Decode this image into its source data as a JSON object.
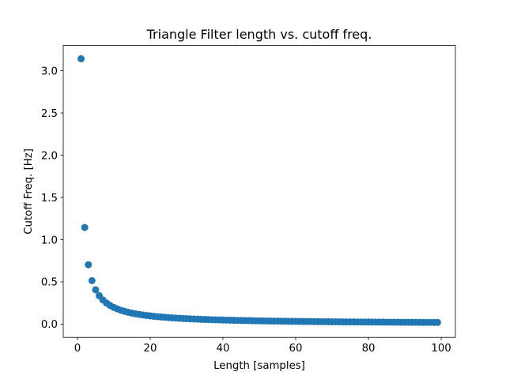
{
  "chart_data": {
    "type": "scatter",
    "title": "Triangle Filter length vs. cutoff freq.",
    "xlabel": "Length [samples]",
    "ylabel": "Cutoff Freq. [Hz]",
    "xlim": [
      -3.9,
      103.9
    ],
    "ylim": [
      -0.157,
      3.299
    ],
    "xticks": [
      0,
      20,
      40,
      60,
      80,
      100
    ],
    "yticks": [
      0.0,
      0.5,
      1.0,
      1.5,
      2.0,
      2.5,
      3.0
    ],
    "xtick_labels": [
      "0",
      "20",
      "40",
      "60",
      "80",
      "100"
    ],
    "ytick_labels": [
      "0.0",
      "0.5",
      "1.0",
      "1.5",
      "2.0",
      "2.5",
      "3.0"
    ],
    "grid": false,
    "marker_color": "#1f77b4",
    "series": [
      {
        "name": "cutoff",
        "x": [
          1,
          2,
          3,
          4,
          5,
          6,
          7,
          8,
          9,
          10,
          11,
          12,
          13,
          14,
          15,
          16,
          17,
          18,
          19,
          20,
          21,
          22,
          23,
          24,
          25,
          26,
          27,
          28,
          29,
          30,
          31,
          32,
          33,
          34,
          35,
          36,
          37,
          38,
          39,
          40,
          41,
          42,
          43,
          44,
          45,
          46,
          47,
          48,
          49,
          50,
          51,
          52,
          53,
          54,
          55,
          56,
          57,
          58,
          59,
          60,
          61,
          62,
          63,
          64,
          65,
          66,
          67,
          68,
          69,
          70,
          71,
          72,
          73,
          74,
          75,
          76,
          77,
          78,
          79,
          80,
          81,
          82,
          83,
          84,
          85,
          86,
          87,
          88,
          89,
          90,
          91,
          92,
          93,
          94,
          95,
          96,
          97,
          98,
          99
        ],
        "y": [
          3.1416,
          1.1437,
          0.703,
          0.5147,
          0.4064,
          0.3356,
          0.2858,
          0.2487,
          0.2201,
          0.1973,
          0.1788,
          0.1634,
          0.1505,
          0.1395,
          0.13,
          0.1217,
          0.1144,
          0.108,
          0.1022,
          0.097,
          0.0924,
          0.0881,
          0.0843,
          0.0807,
          0.0775,
          0.0745,
          0.0717,
          0.0691,
          0.0667,
          0.0645,
          0.0624,
          0.0604,
          0.0586,
          0.0569,
          0.0552,
          0.0537,
          0.0522,
          0.0508,
          0.0495,
          0.0483,
          0.0471,
          0.046,
          0.0449,
          0.0439,
          0.0429,
          0.042,
          0.0411,
          0.0402,
          0.0394,
          0.0386,
          0.0379,
          0.0371,
          0.0364,
          0.0358,
          0.0351,
          0.0345,
          0.0339,
          0.0333,
          0.0328,
          0.0322,
          0.0317,
          0.0312,
          0.0307,
          0.0302,
          0.0298,
          0.0293,
          0.0289,
          0.0285,
          0.0281,
          0.0277,
          0.0273,
          0.0269,
          0.0266,
          0.0262,
          0.0259,
          0.0256,
          0.0252,
          0.0249,
          0.0246,
          0.0243,
          0.024,
          0.0237,
          0.0235,
          0.0232,
          0.0229,
          0.0227,
          0.0224,
          0.0222,
          0.0219,
          0.0217,
          0.0215,
          0.0212,
          0.021,
          0.0208,
          0.0206,
          0.0204,
          0.0202,
          0.02,
          0.0198
        ]
      }
    ]
  }
}
